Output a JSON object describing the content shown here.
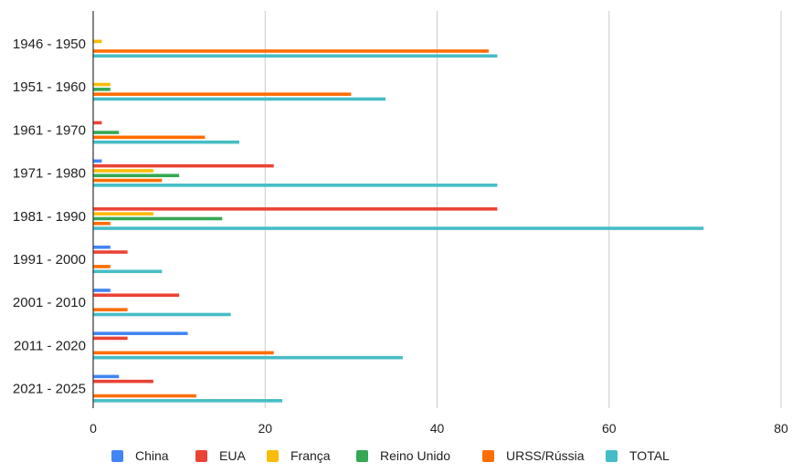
{
  "chart_data": {
    "type": "bar",
    "orientation": "horizontal",
    "categories": [
      "1946 - 1950",
      "1951 - 1960",
      "1961 - 1970",
      "1971 - 1980",
      "1981 - 1990",
      "1991 - 2000",
      "2001 - 2010",
      "2011 - 2020",
      "2021 - 2025"
    ],
    "series": [
      {
        "name": "China",
        "color": "#4285f4",
        "values": [
          0,
          0,
          0,
          1,
          0,
          2,
          2,
          11,
          3
        ]
      },
      {
        "name": "EUA",
        "color": "#ea4335",
        "values": [
          0,
          0,
          1,
          21,
          47,
          4,
          10,
          4,
          7
        ]
      },
      {
        "name": "França",
        "color": "#fbbc04",
        "values": [
          1,
          2,
          0,
          7,
          7,
          0,
          0,
          0,
          0
        ]
      },
      {
        "name": "Reino Unido",
        "color": "#34a853",
        "values": [
          0,
          2,
          3,
          10,
          15,
          0,
          0,
          0,
          0
        ]
      },
      {
        "name": "URSS/Rússia",
        "color": "#ff6d01",
        "values": [
          46,
          30,
          13,
          8,
          2,
          2,
          4,
          21,
          12
        ]
      },
      {
        "name": "TOTAL",
        "color": "#46bdc6",
        "values": [
          47,
          34,
          17,
          47,
          71,
          8,
          16,
          36,
          22
        ]
      }
    ],
    "xlim": [
      0,
      80
    ],
    "xticks": [
      0,
      20,
      40,
      60,
      80
    ],
    "xtick_labels": [
      "0",
      "20",
      "40",
      "60",
      "80"
    ],
    "grid": true,
    "legend_position": "bottom",
    "title": "",
    "xlabel": "",
    "ylabel": ""
  }
}
